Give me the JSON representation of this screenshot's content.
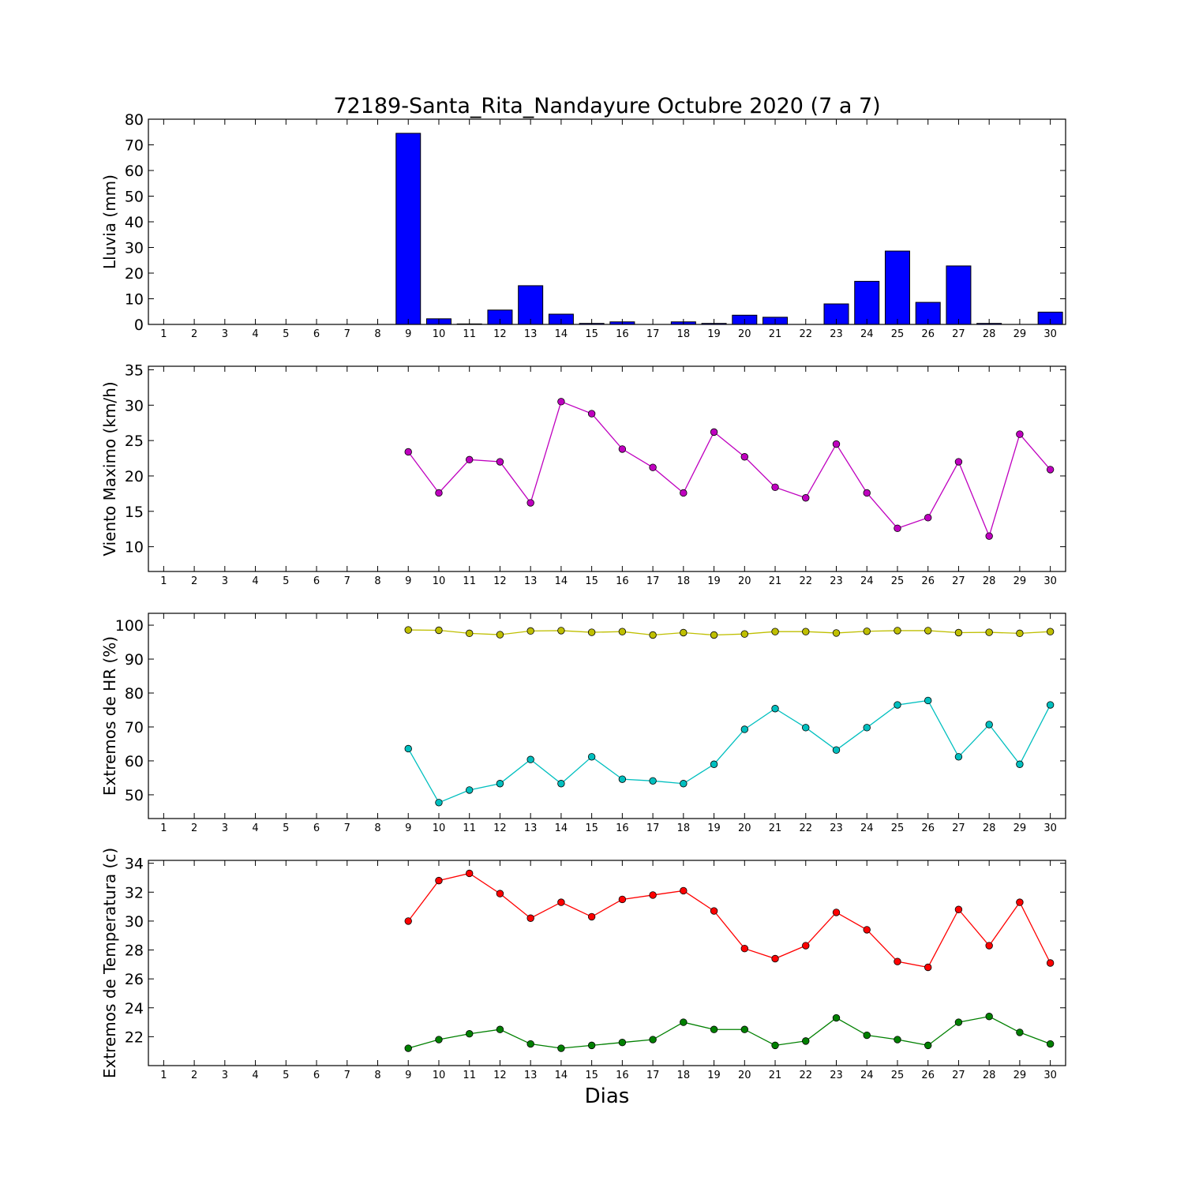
{
  "title": "72189-Santa_Rita_Nandayure Octubre 2020  (7 a 7)",
  "xlabel": "Dias",
  "days": [
    1,
    2,
    3,
    4,
    5,
    6,
    7,
    8,
    9,
    10,
    11,
    12,
    13,
    14,
    15,
    16,
    17,
    18,
    19,
    20,
    21,
    22,
    23,
    24,
    25,
    26,
    27,
    28,
    29,
    30
  ],
  "chart_data": [
    {
      "type": "bar",
      "ylabel": "Lluvia (mm)",
      "ylim": [
        0,
        80
      ],
      "yticks": [
        0,
        10,
        20,
        30,
        40,
        50,
        60,
        70,
        80
      ],
      "x": [
        9,
        10,
        11,
        12,
        13,
        14,
        15,
        16,
        17,
        18,
        19,
        20,
        21,
        22,
        23,
        24,
        25,
        26,
        27,
        28,
        29,
        30
      ],
      "series": [
        {
          "color": "#0000ff",
          "values": [
            74.5,
            2.2,
            0.2,
            5.6,
            15.1,
            4.0,
            0.4,
            1.0,
            0.0,
            1.0,
            0.4,
            3.6,
            2.8,
            0.0,
            8.0,
            16.8,
            28.6,
            8.6,
            22.8,
            0.4,
            0.0,
            4.8
          ]
        }
      ]
    },
    {
      "type": "line",
      "ylabel": "Viento Maximo (km/h)",
      "ylim": [
        6.5,
        35.5
      ],
      "yticks": [
        10,
        15,
        20,
        25,
        30,
        35
      ],
      "x": [
        9,
        10,
        11,
        12,
        13,
        14,
        15,
        16,
        17,
        18,
        19,
        20,
        21,
        22,
        23,
        24,
        25,
        26,
        27,
        28,
        29,
        30
      ],
      "series": [
        {
          "color": "#bf00bf",
          "values": [
            23.4,
            17.6,
            22.3,
            22.0,
            16.2,
            30.5,
            28.8,
            23.8,
            21.2,
            17.6,
            26.2,
            22.7,
            18.4,
            16.9,
            24.5,
            17.6,
            12.6,
            14.1,
            22.0,
            11.5,
            25.9,
            20.9
          ]
        }
      ]
    },
    {
      "type": "line",
      "ylabel": "Extremos de HR (%)",
      "ylim": [
        43,
        103.5
      ],
      "yticks": [
        50,
        60,
        70,
        80,
        90,
        100
      ],
      "x": [
        9,
        10,
        11,
        12,
        13,
        14,
        15,
        16,
        17,
        18,
        19,
        20,
        21,
        22,
        23,
        24,
        25,
        26,
        27,
        28,
        29,
        30
      ],
      "series": [
        {
          "color": "#bfbf00",
          "values": [
            98.6,
            98.5,
            97.6,
            97.2,
            98.3,
            98.4,
            97.9,
            98.1,
            97.1,
            97.8,
            97.1,
            97.4,
            98.1,
            98.1,
            97.7,
            98.2,
            98.4,
            98.4,
            97.8,
            97.9,
            97.6,
            98.1
          ]
        },
        {
          "color": "#00bfbf",
          "values": [
            63.6,
            47.7,
            51.4,
            53.3,
            60.4,
            53.3,
            61.2,
            54.6,
            54.1,
            53.3,
            59.0,
            69.3,
            75.4,
            69.8,
            63.2,
            69.8,
            76.5,
            77.8,
            61.2,
            70.7,
            59.0,
            76.5
          ]
        }
      ]
    },
    {
      "type": "line",
      "ylabel": "Extremos de Temperatura (c)",
      "ylim": [
        20.0,
        34.2
      ],
      "yticks": [
        22,
        24,
        26,
        28,
        30,
        32,
        34
      ],
      "x": [
        9,
        10,
        11,
        12,
        13,
        14,
        15,
        16,
        17,
        18,
        19,
        20,
        21,
        22,
        23,
        24,
        25,
        26,
        27,
        28,
        29,
        30
      ],
      "series": [
        {
          "color": "#ff0000",
          "values": [
            30.0,
            32.8,
            33.3,
            31.9,
            30.2,
            31.3,
            30.3,
            31.5,
            31.8,
            32.1,
            30.7,
            28.1,
            27.4,
            28.3,
            30.6,
            29.4,
            27.2,
            26.8,
            30.8,
            28.3,
            31.3,
            27.1
          ]
        },
        {
          "color": "#008000",
          "values": [
            21.2,
            21.8,
            22.2,
            22.5,
            21.5,
            21.2,
            21.4,
            21.6,
            21.8,
            23.0,
            22.5,
            22.5,
            21.4,
            21.7,
            23.3,
            22.1,
            21.8,
            21.4,
            23.0,
            23.4,
            22.3,
            21.5
          ]
        }
      ]
    }
  ]
}
